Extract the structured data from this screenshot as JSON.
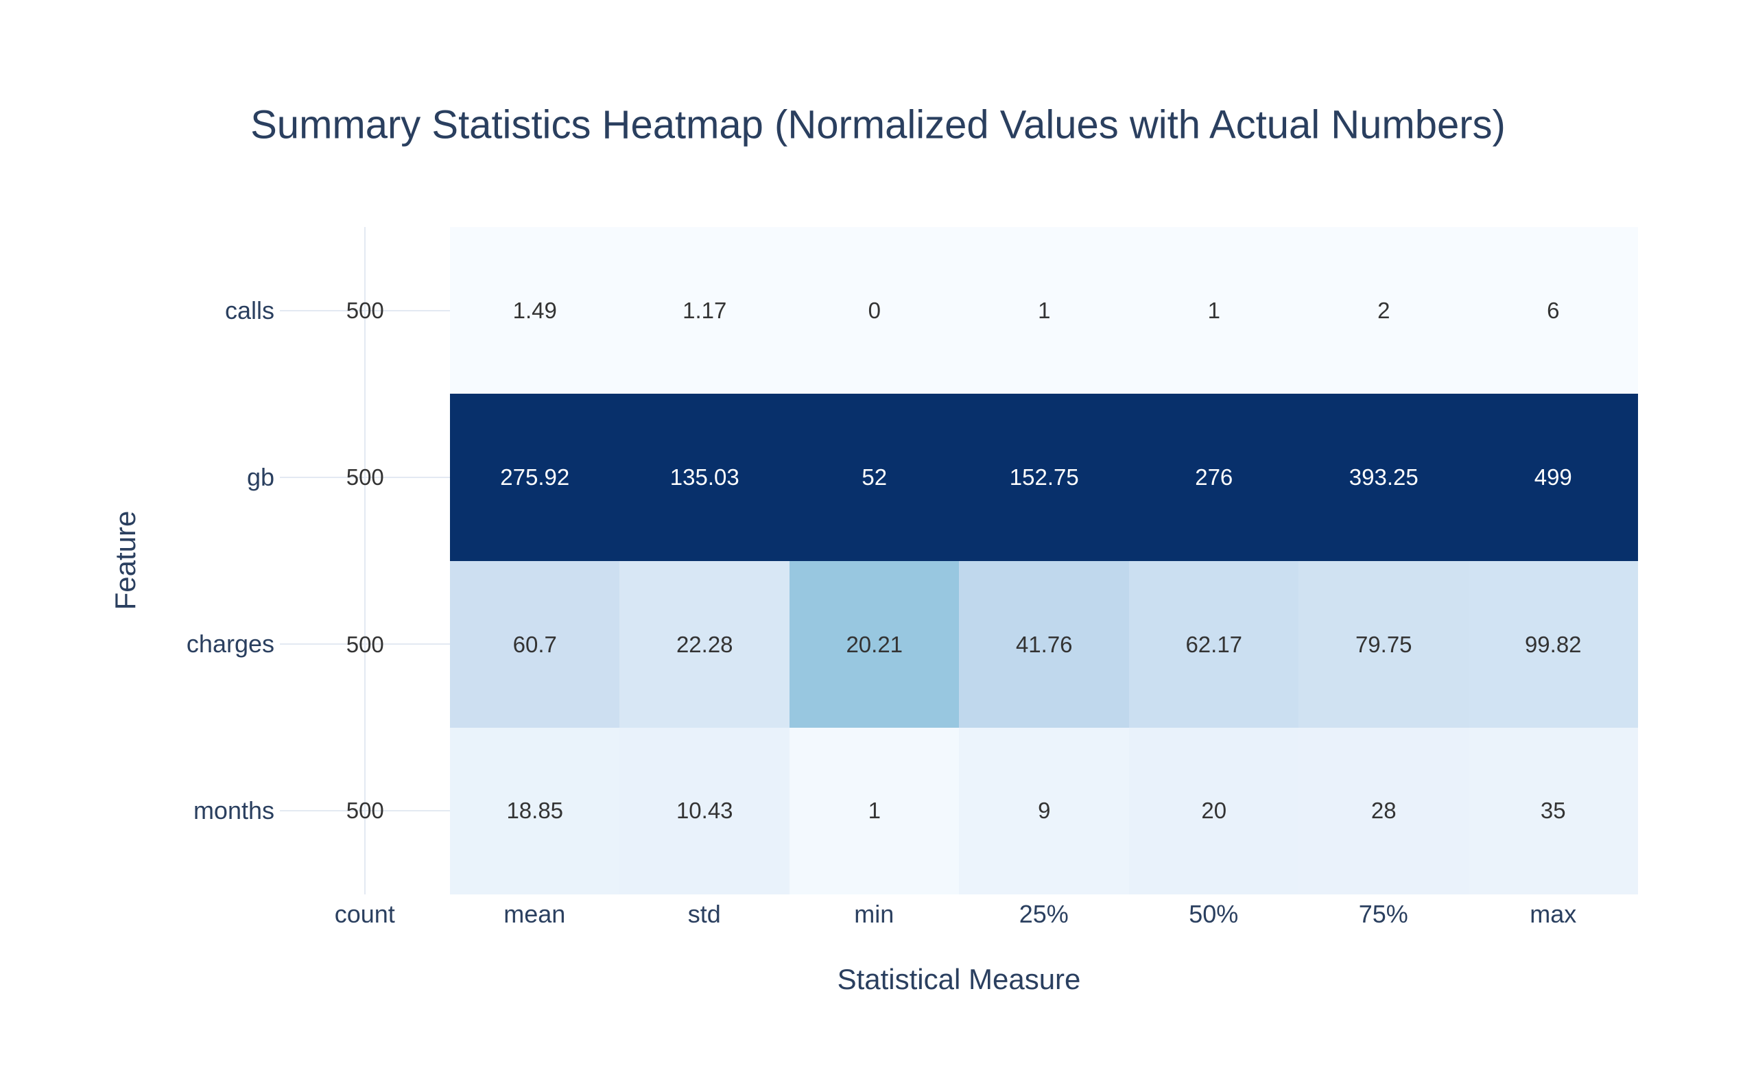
{
  "figure": {
    "title": "Summary Statistics Heatmap (Normalized Values with Actual Numbers)"
  },
  "chart_data": {
    "type": "heatmap",
    "title": "Summary Statistics Heatmap (Normalized Values with Actual Numbers)",
    "xlabel": "Statistical Measure",
    "ylabel": "Feature",
    "x_tick_labels": [
      "count",
      "mean",
      "std",
      "min",
      "25%",
      "50%",
      "75%",
      "max"
    ],
    "y_tick_labels": [
      "calls",
      "gb",
      "charges",
      "months"
    ],
    "cell_text": [
      [
        "500",
        "1.49",
        "1.17",
        "0",
        "1",
        "1",
        "2",
        "6"
      ],
      [
        "500",
        "275.92",
        "135.03",
        "52",
        "152.75",
        "276",
        "393.25",
        "499"
      ],
      [
        "500",
        "60.7",
        "22.28",
        "20.21",
        "41.76",
        "62.17",
        "79.75",
        "99.82"
      ],
      [
        "500",
        "18.85",
        "10.43",
        "1",
        "9",
        "20",
        "28",
        "35"
      ]
    ],
    "values": [
      [
        500,
        1.49,
        1.17,
        0,
        1,
        1,
        2,
        6
      ],
      [
        500,
        275.92,
        135.03,
        52,
        152.75,
        276,
        393.25,
        499
      ],
      [
        500,
        60.7,
        22.28,
        20.21,
        41.76,
        62.17,
        79.75,
        99.82
      ],
      [
        500,
        18.85,
        10.43,
        1,
        9,
        20,
        28,
        35
      ]
    ],
    "normalization": "per-column min-max (constant count column uncolored)",
    "colorscale_name": "Blues",
    "colorscale": [
      [
        0,
        "#f7fbff"
      ],
      [
        0.125,
        "#deebf7"
      ],
      [
        0.25,
        "#c6dbef"
      ],
      [
        0.375,
        "#9ecae1"
      ],
      [
        0.5,
        "#6baed6"
      ],
      [
        0.625,
        "#4292c6"
      ],
      [
        0.75,
        "#2171b5"
      ],
      [
        0.875,
        "#08519c"
      ],
      [
        1,
        "#08306b"
      ]
    ],
    "grid": true,
    "legend_position": "none",
    "colors": {
      "background": "#ffffff",
      "label_text": "#2a3f5f",
      "cell_text_dark": "#333333",
      "cell_text_light": "#ffffff",
      "gridline": "#e3e9f2"
    }
  }
}
